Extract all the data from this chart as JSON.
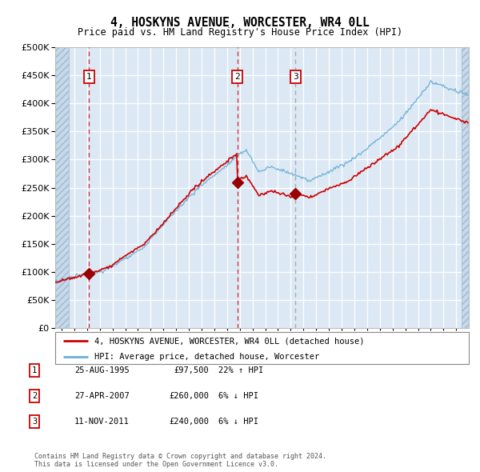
{
  "title": "4, HOSKYNS AVENUE, WORCESTER, WR4 0LL",
  "subtitle": "Price paid vs. HM Land Registry's House Price Index (HPI)",
  "footer": "Contains HM Land Registry data © Crown copyright and database right 2024.\nThis data is licensed under the Open Government Licence v3.0.",
  "legend_line1": "4, HOSKYNS AVENUE, WORCESTER, WR4 0LL (detached house)",
  "legend_line2": "HPI: Average price, detached house, Worcester",
  "transactions": [
    {
      "num": 1,
      "date": "25-AUG-1995",
      "price": 97500,
      "year": 1995.65,
      "hpi_pct": "22% ↑ HPI",
      "vline_color": "#dd3333"
    },
    {
      "num": 2,
      "date": "27-APR-2007",
      "price": 260000,
      "year": 2007.32,
      "hpi_pct": "6% ↓ HPI",
      "vline_color": "#dd3333"
    },
    {
      "num": 3,
      "date": "11-NOV-2011",
      "price": 240000,
      "year": 2011.86,
      "hpi_pct": "6% ↓ HPI",
      "vline_color": "#aaaaaa"
    }
  ],
  "hpi_line_color": "#6baed6",
  "price_line_color": "#cc0000",
  "dot_color": "#990000",
  "background_color": "#dce9f5",
  "hatch_color": "#c5d9ea",
  "grid_color": "#ffffff",
  "ylim": [
    0,
    500000
  ],
  "ytick_step": 50000,
  "xmin": 1993,
  "xmax": 2025.5
}
